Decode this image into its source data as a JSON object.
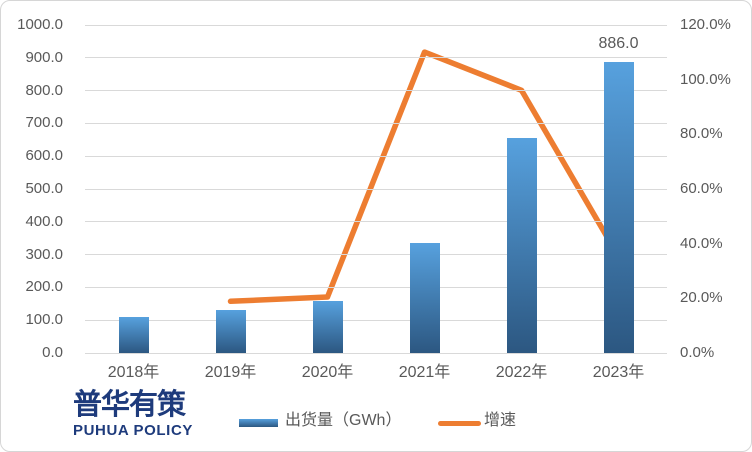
{
  "chart_data": {
    "type": "bar",
    "subtype": "combo bar + line, dual axis",
    "title": "",
    "categories": [
      "2018年",
      "2019年",
      "2020年",
      "2021年",
      "2022年",
      "2023年"
    ],
    "series": [
      {
        "name": "出货量（GWh）",
        "type": "bar",
        "axis": "left",
        "values": [
          111.0,
          132.0,
          159.0,
          334.0,
          655.0,
          886.0
        ]
      },
      {
        "name": "增速",
        "type": "line",
        "axis": "right",
        "values": [
          null,
          18.9,
          20.5,
          110.1,
          96.1,
          35.3
        ]
      }
    ],
    "left_axis": {
      "min": 0,
      "max": 1000,
      "ticks": [
        "1000.0",
        "900.0",
        "800.0",
        "700.0",
        "600.0",
        "500.0",
        "400.0",
        "300.0",
        "200.0",
        "100.0",
        "0.0"
      ]
    },
    "right_axis": {
      "min": 0,
      "max": 120,
      "ticks": [
        "120.0%",
        "100.0%",
        "80.0%",
        "60.0%",
        "40.0%",
        "20.0%",
        "0.0%"
      ]
    },
    "data_labels": [
      {
        "category_index": 5,
        "text": "886.0"
      }
    ],
    "grid": true,
    "legend_position": "bottom"
  },
  "colors": {
    "bar_top": "#57A1DE",
    "bar_bottom": "#2C5781",
    "line": "#ED7D31",
    "gridline": "#D9D9D9",
    "axis_text": "#595959",
    "frame_border": "#D6D6D6",
    "logo_blue": "#1E3B7C"
  },
  "legend": {
    "bar_label": "出货量（GWh）",
    "line_label": "增速"
  },
  "branding": {
    "logo_cn": "普华有策",
    "logo_en": "PUHUA POLICY"
  }
}
